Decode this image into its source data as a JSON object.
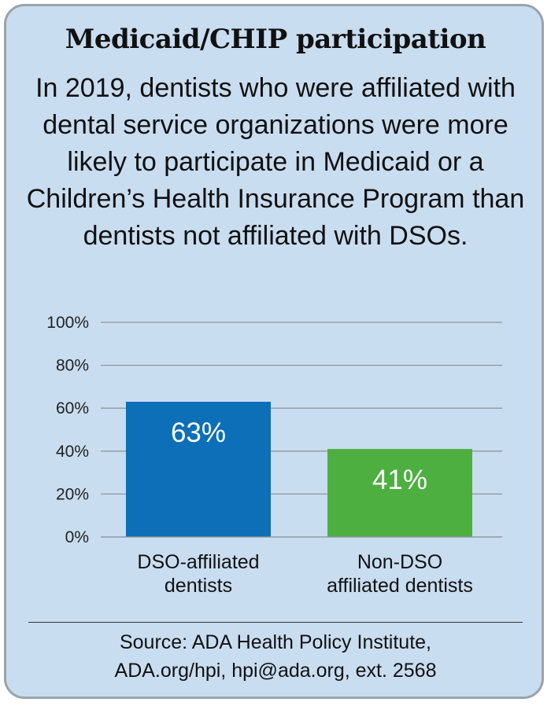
{
  "title": "Medicaid/CHIP participation",
  "subtitle": "In 2019, dentists who were affiliated with dental service organizations were more likely to participate in Medicaid or a Children’s Health Insurance Program than dentists not affiliated with DSOs.",
  "chart_data": {
    "type": "bar",
    "title": "Medicaid/CHIP participation",
    "categories": [
      [
        "DSO-affiliated",
        "dentists"
      ],
      [
        "Non-DSO",
        "affiliated dentists"
      ]
    ],
    "values": [
      63,
      41
    ],
    "data_labels": [
      "63%",
      "41%"
    ],
    "bar_colors": [
      "#0c6fb8",
      "#4daf3f"
    ],
    "ylim": [
      0,
      100
    ],
    "yticks": [
      0,
      20,
      40,
      60,
      80,
      100
    ],
    "ytick_labels": [
      "0%",
      "20%",
      "40%",
      "60%",
      "80%",
      "100%"
    ],
    "xlabel": "",
    "ylabel": "",
    "grid": true
  },
  "source": {
    "line1": "Source: ADA Health Policy Institute,",
    "line2": "ADA.org/hpi, hpi@ada.org, ext. 2568"
  },
  "colors": {
    "background": "#c9ddf0",
    "border": "#9aa3ab",
    "gridline": "#8f979e"
  }
}
